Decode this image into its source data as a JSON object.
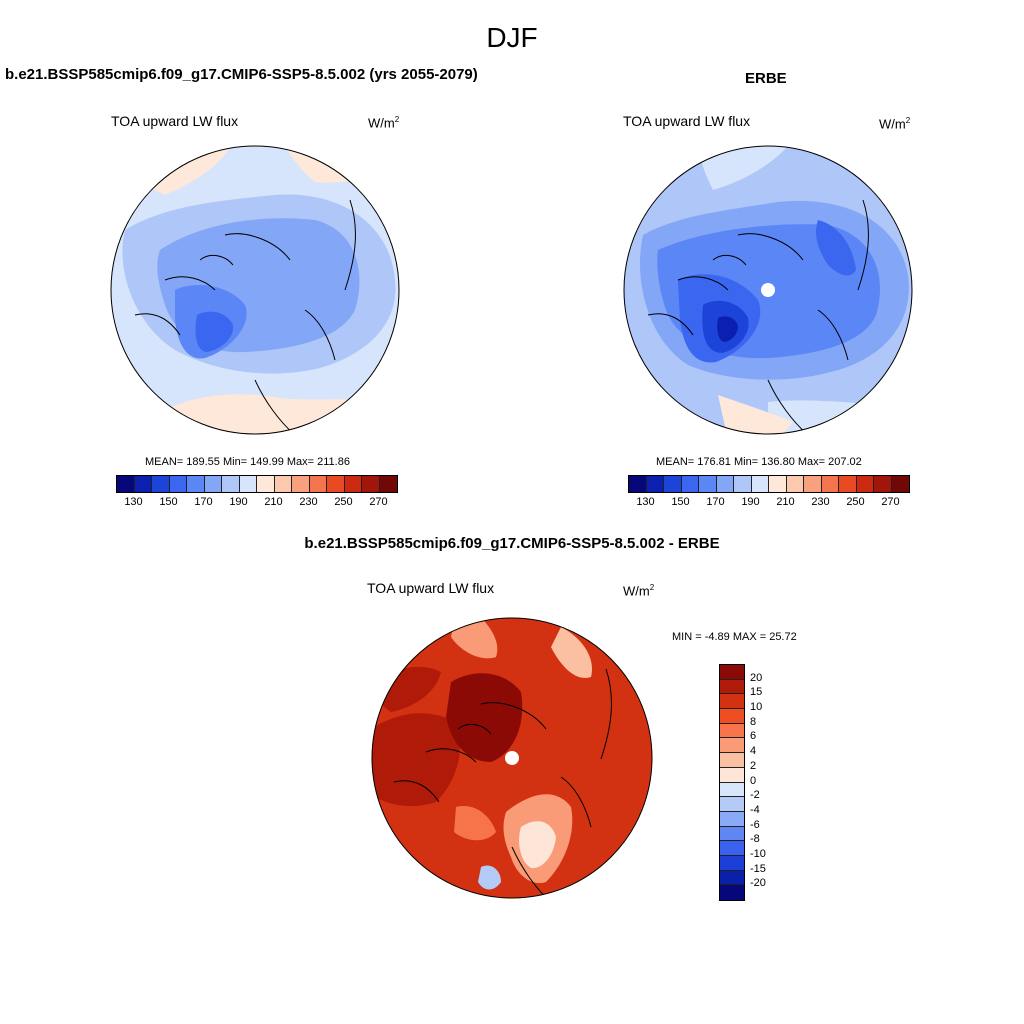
{
  "page": {
    "title": "DJF"
  },
  "chart_data": [
    {
      "type": "heatmap",
      "projection": "north-polar-stereographic",
      "title": "b.e21.BSSP585cmip6.f09_g17.CMIP6-SSP5-8.5.002 (yrs 2055-2079)",
      "variable": "TOA upward LW flux",
      "units_base": "W/m",
      "units_exp": "2",
      "stats": {
        "mean": "189.55",
        "min": "149.99",
        "max": "211.86"
      },
      "stats_text": "MEAN= 189.55  Min= 149.99  Max= 211.86",
      "colorbar": {
        "levels": [
          130,
          140,
          150,
          160,
          170,
          180,
          190,
          200,
          210,
          220,
          230,
          240,
          250,
          260,
          270
        ],
        "tick_labels": [
          "130",
          "150",
          "170",
          "190",
          "210",
          "230",
          "250",
          "270"
        ],
        "colors": [
          "#08077a",
          "#0b1fb0",
          "#1c44d8",
          "#3a66f0",
          "#5b86f5",
          "#83a6f7",
          "#aec6f8",
          "#d6e5fb",
          "#fde8da",
          "#fcc8ae",
          "#f9a07d",
          "#f4744d",
          "#e84a24",
          "#cc2a10",
          "#a2150a",
          "#700806"
        ]
      }
    },
    {
      "type": "heatmap",
      "projection": "north-polar-stereographic",
      "title": "ERBE",
      "variable": "TOA upward LW flux",
      "units_base": "W/m",
      "units_exp": "2",
      "stats": {
        "mean": "176.81",
        "min": "136.80",
        "max": "207.02"
      },
      "stats_text": "MEAN= 176.81  Min= 136.80  Max= 207.02",
      "colorbar": {
        "levels": [
          130,
          140,
          150,
          160,
          170,
          180,
          190,
          200,
          210,
          220,
          230,
          240,
          250,
          260,
          270
        ],
        "tick_labels": [
          "130",
          "150",
          "170",
          "190",
          "210",
          "230",
          "250",
          "270"
        ],
        "colors": [
          "#08077a",
          "#0b1fb0",
          "#1c44d8",
          "#3a66f0",
          "#5b86f5",
          "#83a6f7",
          "#aec6f8",
          "#d6e5fb",
          "#fde8da",
          "#fcc8ae",
          "#f9a07d",
          "#f4744d",
          "#e84a24",
          "#cc2a10",
          "#a2150a",
          "#700806"
        ]
      }
    },
    {
      "type": "heatmap",
      "projection": "north-polar-stereographic",
      "title": "b.e21.BSSP585cmip6.f09_g17.CMIP6-SSP5-8.5.002 - ERBE",
      "variable": "TOA upward LW flux",
      "units_base": "W/m",
      "units_exp": "2",
      "stats": {
        "min": "-4.89",
        "max": "25.72"
      },
      "stats_text": "MIN =  -4.89 MAX =  25.72",
      "colorbar": {
        "levels": [
          20,
          15,
          10,
          8,
          6,
          4,
          2,
          0,
          -2,
          -4,
          -6,
          -8,
          -10,
          -15,
          -20
        ],
        "tick_labels": [
          "20",
          "15",
          "10",
          "8",
          "6",
          "4",
          "2",
          "0",
          "-2",
          "-4",
          "-6",
          "-8",
          "-10",
          "-15",
          "-20"
        ],
        "colors": [
          "#8b0a05",
          "#b01a08",
          "#d33212",
          "#ef4e22",
          "#f7744a",
          "#f99b76",
          "#fbbfa2",
          "#fde6d8",
          "#d8e6fb",
          "#b4cbf8",
          "#8aa9f6",
          "#5f86f3",
          "#3a62ee",
          "#1b3fd6",
          "#0b20a8",
          "#06077a"
        ]
      }
    }
  ]
}
